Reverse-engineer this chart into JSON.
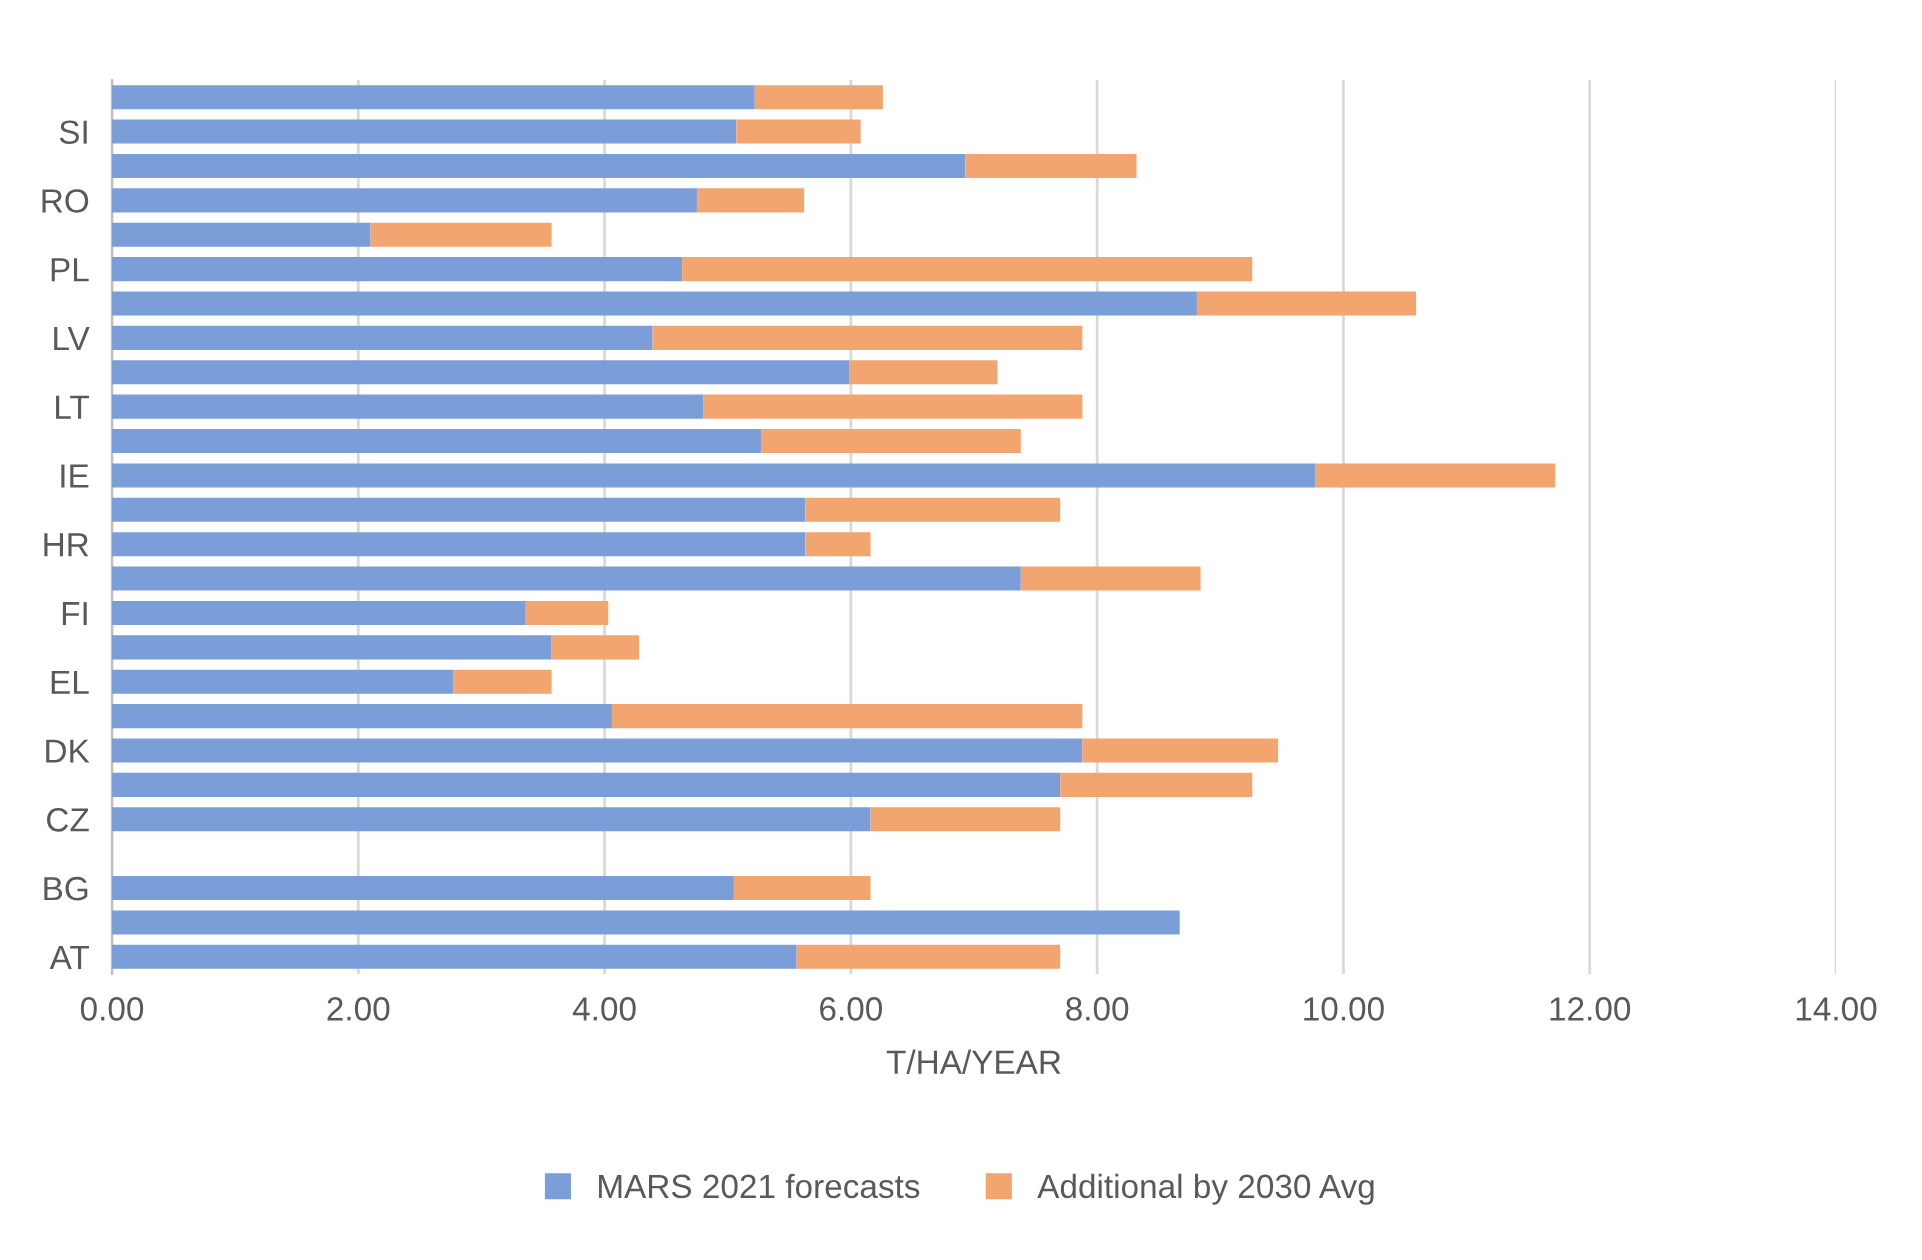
{
  "chart_data": {
    "type": "bar",
    "orientation": "horizontal",
    "stacked": true,
    "xlabel": "T/HA/YEAR",
    "categories": [
      null,
      "SI",
      null,
      "RO",
      null,
      "PL",
      null,
      "LV",
      null,
      "LT",
      null,
      "IE",
      null,
      "HR",
      null,
      "FI",
      null,
      "EL",
      null,
      "DK",
      null,
      "CZ",
      null,
      "BG",
      null,
      "AT"
    ],
    "series": [
      {
        "name": "MARS 2021 forecasts",
        "color": "#7b9ed8",
        "values": [
          5.22,
          5.07,
          6.93,
          4.75,
          2.1,
          4.63,
          8.81,
          4.39,
          5.99,
          4.8,
          5.27,
          9.77,
          5.63,
          5.63,
          7.38,
          3.36,
          3.57,
          2.77,
          4.06,
          7.88,
          7.7,
          6.16,
          null,
          5.05,
          8.67,
          5.56
        ]
      },
      {
        "name": "Additional by 2030 Avg",
        "color": "#f3a56f",
        "values": [
          1.04,
          1.01,
          1.39,
          0.87,
          1.47,
          4.63,
          1.78,
          3.49,
          1.2,
          3.08,
          2.11,
          1.95,
          2.07,
          0.53,
          1.46,
          0.67,
          0.71,
          0.8,
          3.82,
          1.59,
          1.56,
          1.54,
          null,
          1.11,
          0,
          2.14
        ]
      }
    ],
    "xlim": [
      0,
      14
    ],
    "xticks": [
      {
        "value": 0,
        "label": "0.00"
      },
      {
        "value": 2,
        "label": "2.00"
      },
      {
        "value": 4,
        "label": "4.00"
      },
      {
        "value": 6,
        "label": "6.00"
      },
      {
        "value": 8,
        "label": "8.00"
      },
      {
        "value": 10,
        "label": "10.00"
      },
      {
        "value": 12,
        "label": "12.00"
      },
      {
        "value": 14,
        "label": "14.00"
      }
    ],
    "grid": "x",
    "legend": "bottom"
  }
}
